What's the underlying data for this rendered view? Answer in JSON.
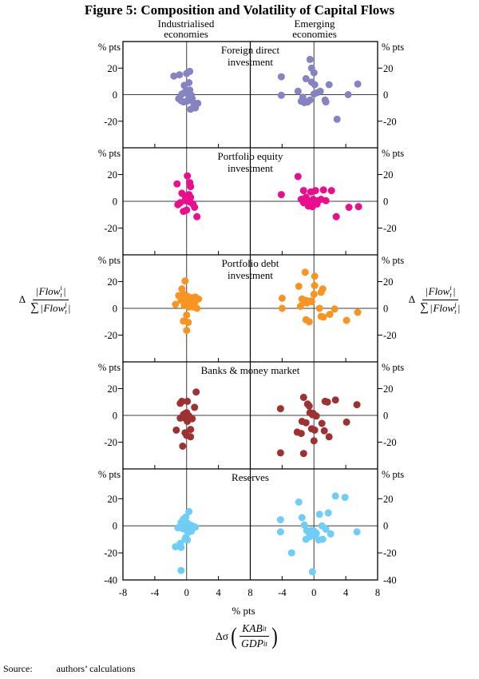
{
  "figure": {
    "title": "Figure 5: Composition and Volatility of Capital Flows",
    "column_headers": [
      [
        "Industrialised",
        "economies"
      ],
      [
        "Emerging",
        "economies"
      ]
    ],
    "source": {
      "label": "Source:",
      "text": "authors’ calculations"
    }
  },
  "axis": {
    "xlim": [
      -8,
      8
    ],
    "x_ticks_left": [
      -8,
      -4,
      0,
      4,
      8
    ],
    "x_ticks_right": [
      -4,
      0,
      4,
      8
    ],
    "x_minor_ticks": [
      -4,
      4
    ],
    "x_unit": "% pts",
    "y_unit": "% pts"
  },
  "formulas": {
    "y_axis": {
      "delta": "Δ",
      "bar": "|",
      "var": "Flow",
      "sup_num": "i",
      "sup_den": "j",
      "sub": "t",
      "sigma": "∑"
    },
    "x_axis": {
      "prefix": "Δσ",
      "lparen": "(",
      "rparen": ")",
      "num_var": "KAB",
      "num_sub": "it",
      "den_var": "GDP",
      "den_sub": "it"
    }
  },
  "chart_data": [
    {
      "type": "scatter",
      "label": [
        "Foreign direct",
        "investment"
      ],
      "color": "#8583c1",
      "y_ticks": [
        20,
        0,
        -20
      ],
      "ylim": [
        -40,
        40
      ],
      "series": [
        {
          "name": "Industrialised economies",
          "points": [
            [
              -1.6,
              14
            ],
            [
              -0.9,
              15
            ],
            [
              0,
              16
            ],
            [
              0.4,
              17.5
            ],
            [
              -0.3,
              7
            ],
            [
              0.3,
              9
            ],
            [
              0.4,
              3.5
            ],
            [
              -0.2,
              2
            ],
            [
              -0.6,
              0.5
            ],
            [
              0.1,
              1
            ],
            [
              0.6,
              -0.5
            ],
            [
              -1,
              -3
            ],
            [
              -0.7,
              -4.5
            ],
            [
              -0.4,
              -5.5
            ],
            [
              0,
              -5
            ],
            [
              0.3,
              -4
            ],
            [
              0.3,
              -2
            ],
            [
              0.7,
              -3
            ],
            [
              0.9,
              -6.5
            ],
            [
              1.4,
              -6.5
            ],
            [
              0.5,
              -11
            ],
            [
              1.1,
              -10
            ]
          ]
        },
        {
          "name": "Emerging economies",
          "points": [
            [
              -0.5,
              26.5
            ],
            [
              -0.3,
              20
            ],
            [
              0,
              16.5
            ],
            [
              -1,
              12
            ],
            [
              -4.1,
              13.5
            ],
            [
              -0.3,
              9.5
            ],
            [
              0.1,
              7.5
            ],
            [
              1.9,
              7.5
            ],
            [
              5.5,
              8
            ],
            [
              -4.1,
              -0.5
            ],
            [
              -2,
              2.5
            ],
            [
              -1.4,
              -2
            ],
            [
              -1.6,
              -5
            ],
            [
              -1.2,
              -6
            ],
            [
              -0.8,
              -5.5
            ],
            [
              -0.5,
              -4
            ],
            [
              0,
              0.5
            ],
            [
              0.4,
              1.5
            ],
            [
              0.8,
              2.5
            ],
            [
              1.4,
              -4
            ],
            [
              1.5,
              -5.5
            ],
            [
              4.3,
              0
            ],
            [
              2.9,
              -18.5
            ]
          ]
        }
      ]
    },
    {
      "type": "scatter",
      "label": [
        "Portfolio equity",
        "investment"
      ],
      "color": "#eb0d8c",
      "y_ticks": [
        20,
        0,
        -20
      ],
      "ylim": [
        -40,
        40
      ],
      "series": [
        {
          "name": "Industrialised economies",
          "points": [
            [
              -1.2,
              13
            ],
            [
              0.1,
              19
            ],
            [
              0.4,
              14
            ],
            [
              0.5,
              11
            ],
            [
              -0.6,
              6
            ],
            [
              -0.2,
              4
            ],
            [
              0.3,
              5
            ],
            [
              0.5,
              3
            ],
            [
              -0.8,
              -1
            ],
            [
              -1.1,
              -2.5
            ],
            [
              -0.2,
              0.5
            ],
            [
              0.1,
              2
            ],
            [
              0.4,
              -0.5
            ],
            [
              0.8,
              -2
            ],
            [
              -0.4,
              -7.5
            ],
            [
              0,
              -6.5
            ],
            [
              1,
              -4.5
            ],
            [
              1.3,
              -11.5
            ]
          ]
        },
        {
          "name": "Emerging economies",
          "points": [
            [
              -2,
              18.5
            ],
            [
              -4.1,
              5
            ],
            [
              -1.3,
              8
            ],
            [
              -0.4,
              7
            ],
            [
              0.2,
              8
            ],
            [
              1.2,
              8.5
            ],
            [
              2.2,
              8
            ],
            [
              -1,
              3
            ],
            [
              -1.6,
              1.5
            ],
            [
              -1.3,
              -1
            ],
            [
              -0.8,
              0.5
            ],
            [
              -0.4,
              -0.5
            ],
            [
              -0.1,
              1.5
            ],
            [
              0.5,
              0.5
            ],
            [
              0.9,
              1.5
            ],
            [
              1.5,
              0.5
            ],
            [
              -0.7,
              -3.5
            ],
            [
              -0.2,
              -4
            ],
            [
              0.4,
              -2
            ],
            [
              2.8,
              -11.5
            ],
            [
              4.4,
              -4.5
            ],
            [
              5.6,
              -4
            ]
          ]
        }
      ]
    },
    {
      "type": "scatter",
      "label": [
        "Portfolio debt",
        "investment"
      ],
      "color": "#f89422",
      "y_ticks": [
        20,
        0,
        -20
      ],
      "ylim": [
        -40,
        40
      ],
      "series": [
        {
          "name": "Industrialised economies",
          "points": [
            [
              -0.2,
              20.5
            ],
            [
              -0.6,
              14.5
            ],
            [
              -1,
              9.5
            ],
            [
              -0.4,
              10.5
            ],
            [
              0.1,
              9
            ],
            [
              0.6,
              8
            ],
            [
              1.1,
              8.5
            ],
            [
              1.5,
              7
            ],
            [
              -0.7,
              6
            ],
            [
              -0.1,
              5
            ],
            [
              0.4,
              5
            ],
            [
              1,
              4
            ],
            [
              -1.4,
              3
            ],
            [
              -0.3,
              2
            ],
            [
              0.3,
              1
            ],
            [
              0.8,
              1
            ],
            [
              1.3,
              0
            ],
            [
              0,
              -5
            ],
            [
              -0.4,
              -9.5
            ],
            [
              0.2,
              -10.5
            ],
            [
              0,
              -16.5
            ]
          ]
        },
        {
          "name": "Emerging economies",
          "points": [
            [
              -1.1,
              27
            ],
            [
              0.1,
              24
            ],
            [
              0.1,
              17
            ],
            [
              -1.9,
              16.5
            ],
            [
              1.1,
              14.5
            ],
            [
              0,
              10.5
            ],
            [
              0.9,
              12
            ],
            [
              -4,
              7.5
            ],
            [
              -1.5,
              7
            ],
            [
              -1.1,
              6
            ],
            [
              -0.8,
              5.5
            ],
            [
              -0.4,
              5.5
            ],
            [
              -1.3,
              4.5
            ],
            [
              -0.9,
              4
            ],
            [
              -0.3,
              5
            ],
            [
              -4,
              0
            ],
            [
              -1.7,
              1.5
            ],
            [
              0.7,
              0
            ],
            [
              2,
              -4.5
            ],
            [
              2.6,
              -0.5
            ],
            [
              0.9,
              -6
            ],
            [
              1.2,
              -6.5
            ],
            [
              -1,
              -8.5
            ],
            [
              -0.6,
              -10
            ],
            [
              4.1,
              -9
            ],
            [
              5.5,
              -3
            ]
          ]
        }
      ]
    },
    {
      "type": "scatter",
      "label": [
        "Banks & money market"
      ],
      "color": "#9e3233",
      "y_ticks": [
        20,
        0,
        -20
      ],
      "ylim": [
        -40,
        40
      ],
      "series": [
        {
          "name": "Industrialised economies",
          "points": [
            [
              1.2,
              17.5
            ],
            [
              -0.6,
              10.5
            ],
            [
              -0.8,
              9
            ],
            [
              0.1,
              10.5
            ],
            [
              1,
              6
            ],
            [
              0,
              2
            ],
            [
              -0.4,
              0.5
            ],
            [
              -0.8,
              -2
            ],
            [
              -0.2,
              -2
            ],
            [
              0.3,
              -0.5
            ],
            [
              0.7,
              -2.5
            ],
            [
              0.1,
              -4.5
            ],
            [
              -0.3,
              1
            ],
            [
              0.2,
              -1
            ],
            [
              -1.3,
              -11
            ],
            [
              -0.2,
              -13
            ],
            [
              0.5,
              -10.5
            ],
            [
              0,
              -15
            ],
            [
              0.5,
              -16
            ],
            [
              -0.5,
              -23
            ]
          ]
        },
        {
          "name": "Emerging economies",
          "points": [
            [
              -1.3,
              13.5
            ],
            [
              -0.8,
              8.5
            ],
            [
              -0.6,
              7
            ],
            [
              1.4,
              10.5
            ],
            [
              1.7,
              10
            ],
            [
              2.7,
              11.5
            ],
            [
              5.4,
              8
            ],
            [
              -4.2,
              5
            ],
            [
              -0.5,
              2
            ],
            [
              -0.2,
              0.5
            ],
            [
              -0.1,
              1.5
            ],
            [
              0.3,
              -0.5
            ],
            [
              -1.5,
              -4.5
            ],
            [
              -1,
              -5.5
            ],
            [
              1,
              -6
            ],
            [
              4.1,
              -5
            ],
            [
              -2.1,
              -12.5
            ],
            [
              -1.6,
              -13.5
            ],
            [
              -0.3,
              -10
            ],
            [
              0.1,
              -11
            ],
            [
              1.3,
              -11.5
            ],
            [
              1.9,
              -16
            ],
            [
              0,
              -19
            ],
            [
              -4.2,
              -28
            ],
            [
              -1.3,
              -28.5
            ]
          ]
        }
      ]
    },
    {
      "type": "scatter",
      "label": [
        "Reserves"
      ],
      "color": "#6ecef5",
      "y_ticks": [
        20,
        0,
        -20,
        -40
      ],
      "ylim": [
        -40,
        42
      ],
      "series": [
        {
          "name": "Industrialised economies",
          "points": [
            [
              -0.8,
              -13
            ],
            [
              -1.4,
              -15.5
            ],
            [
              -0.7,
              -16
            ],
            [
              -0.2,
              -10
            ],
            [
              0.1,
              -10.5
            ],
            [
              -0.7,
              2.5
            ],
            [
              -0.4,
              5
            ],
            [
              -0.1,
              6.5
            ],
            [
              0.3,
              10.5
            ],
            [
              -0.3,
              3
            ],
            [
              0.1,
              2
            ],
            [
              0.4,
              0.5
            ],
            [
              0.7,
              0
            ],
            [
              1.1,
              -1
            ],
            [
              -1.1,
              -1.5
            ],
            [
              -0.5,
              -2
            ],
            [
              0,
              -3.5
            ],
            [
              0.3,
              -4.5
            ],
            [
              0.6,
              -4
            ],
            [
              -0.1,
              -8.5
            ],
            [
              -0.7,
              -33
            ]
          ]
        },
        {
          "name": "Emerging economies",
          "points": [
            [
              -1.9,
              17.5
            ],
            [
              2.7,
              22
            ],
            [
              3.9,
              21
            ],
            [
              -1.5,
              6
            ],
            [
              -4.2,
              4.5
            ],
            [
              0.7,
              8.5
            ],
            [
              1.8,
              9.5
            ],
            [
              -1.2,
              0.5
            ],
            [
              -4.2,
              -4.5
            ],
            [
              -2.8,
              -20
            ],
            [
              -1,
              -10
            ],
            [
              -0.5,
              -8
            ],
            [
              -0.9,
              -3.5
            ],
            [
              -0.7,
              -4.5
            ],
            [
              -0.3,
              -3.5
            ],
            [
              0,
              -4
            ],
            [
              0.3,
              -5.5
            ],
            [
              -0.1,
              -6
            ],
            [
              0.2,
              -7
            ],
            [
              0.6,
              -10.5
            ],
            [
              1.1,
              -10
            ],
            [
              1.5,
              -2.5
            ],
            [
              2.1,
              -6
            ],
            [
              1,
              0
            ],
            [
              5.4,
              -4.5
            ],
            [
              -0.2,
              -34
            ]
          ]
        }
      ]
    }
  ]
}
